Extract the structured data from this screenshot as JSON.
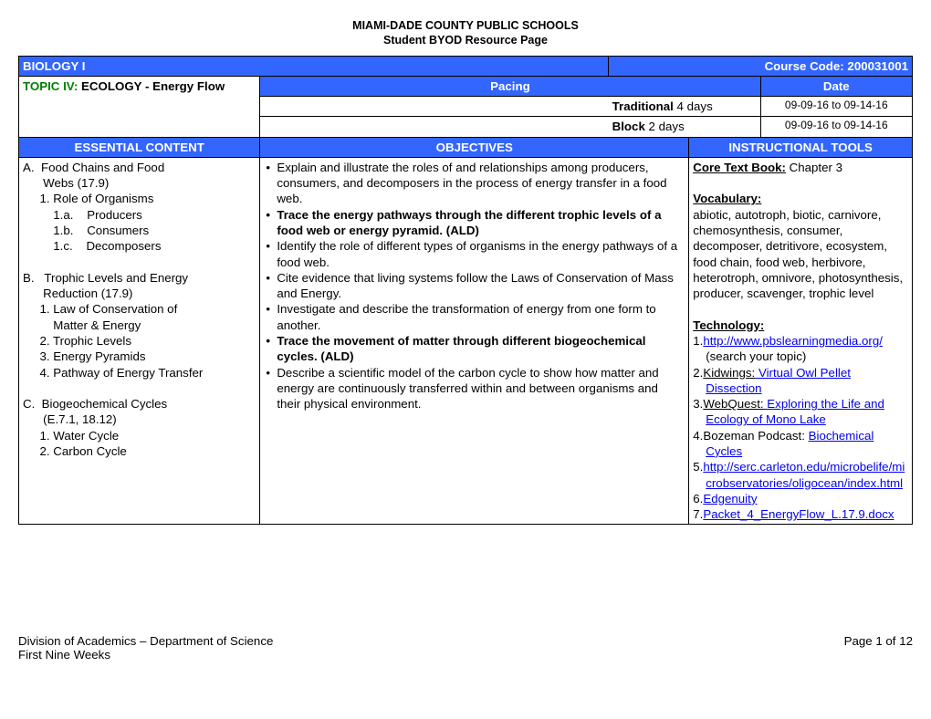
{
  "header": {
    "line1": "MIAMI-DADE COUNTY PUBLIC SCHOOLS",
    "line2": "Student BYOD Resource Page"
  },
  "course_row": {
    "left": "BIOLOGY I",
    "right": "Course Code: 200031001"
  },
  "topic_row": {
    "topic_label": "TOPIC IV:",
    "topic_text": " ECOLOGY - Energy Flow",
    "pacing": "Pacing",
    "date": "Date"
  },
  "pacing": {
    "trad_label": "Traditional",
    "trad_days": "   4 days",
    "trad_date": "09-09-16 to 09-14-16",
    "block_label": "Block",
    "block_days": " 2 days",
    "block_date": "09-09-16 to 09-14-16"
  },
  "col_heads": {
    "c1": "ESSENTIAL CONTENT",
    "c2": "OBJECTIVES",
    "c3": "INSTRUCTIONAL TOOLS"
  },
  "essential": {
    "a_head": "A.  Food Chains and Food",
    "a_head2": "      Webs (17.9)",
    "a1": "     1. Role of Organisms",
    "a1a": "         1.a.    Producers",
    "a1b": "         1.b.    Consumers",
    "a1c": "         1.c.    Decomposers",
    "b_head": "B.   Trophic Levels and Energy",
    "b_head2": "      Reduction (17.9)",
    "b1": "     1. Law of Conservation of",
    "b1b": "         Matter & Energy",
    "b2": "     2. Trophic Levels",
    "b3": "     3. Energy Pyramids",
    "b4": "     4. Pathway of Energy Transfer",
    "c_head": "C.  Biogeochemical Cycles",
    "c_head2": "      (E.7.1, 18.12)",
    "c1": "     1. Water Cycle",
    "c2": "     2. Carbon Cycle"
  },
  "objectives": [
    {
      "text": "Explain and illustrate the roles of and relationships among producers, consumers, and decomposers in the process of energy transfer in a food web.",
      "bold": false
    },
    {
      "text": "Trace the energy pathways through the different trophic levels of a food web or energy pyramid. (ALD)",
      "bold": true
    },
    {
      "text": "Identify the role of different types of organisms in the energy pathways of a food web.",
      "bold": false
    },
    {
      "text": "Cite evidence that living systems follow the Laws of Conservation of Mass and Energy.",
      "bold": false
    },
    {
      "text": "Investigate and describe the transformation of energy from one form to another.",
      "bold": false
    },
    {
      "text": "Trace the movement of matter through different biogeochemical cycles. (ALD)",
      "bold": true
    },
    {
      "text": "Describe a scientific model of the carbon cycle to show how matter and energy are continuously transferred within and between organisms and their physical environment.",
      "bold": false
    }
  ],
  "tools": {
    "core_label": "Core Text Book:",
    "core_text": " Chapter 3",
    "vocab_label": "Vocabulary:",
    "vocab_text": "abiotic, autotroph, biotic, carnivore, chemosynthesis, consumer, decomposer, detritivore, ecosystem, food chain, food web,  herbivore, heterotroph, omnivore, photosynthesis, producer, scavenger, trophic level",
    "tech_label": "Technology:",
    "t1a": "1.",
    "t1link": "http://www.pbslearningmedia.org/",
    "t1b": " (search your topic)",
    "t2a": "2.",
    "t2pre": "Kidwings:",
    "t2link": " Virtual Owl Pellet Dissection",
    "t3a": "3.",
    "t3pre": "WebQuest:",
    "t3link": " Exploring the Life and Ecology of Mono Lake",
    "t4a": "4.",
    "t4pre": "Bozeman Podcast: ",
    "t4link": "Biochemical Cycles",
    "t5a": "5.",
    "t5link": "http://serc.carleton.edu/microbelife/microbservatories/oligocean/index.html",
    "t6a": "6.",
    "t6link": "Edgenuity",
    "t7a": "7.",
    "t7link": "Packet_4_EnergyFlow_L.17.9.docx"
  },
  "footer": {
    "left1": "Division of Academics – Department of Science",
    "left2": "First Nine Weeks",
    "right": "Page 1 of 12"
  },
  "colors": {
    "blue": "#3366ff",
    "green": "#008000",
    "link": "#0000ee"
  },
  "layout": {
    "col1_width_pct": 27,
    "col2_width_pct": 39,
    "col3a_width_pct": 17,
    "col3b_width_pct": 17
  }
}
